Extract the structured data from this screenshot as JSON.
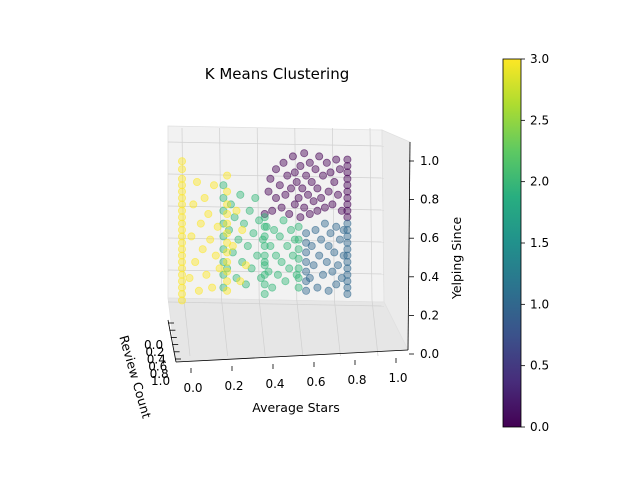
{
  "chart_data": {
    "type": "scatter",
    "title": "K Means Clustering",
    "xlabel": "Average Stars",
    "ylabel": "Review Count",
    "zlabel": "Yelping Since",
    "x_ticks": [
      "0.0",
      "0.2",
      "0.4",
      "0.6",
      "0.8",
      "1.0"
    ],
    "y_ticks": [
      "0.0",
      "0.2",
      "0.4",
      "0.6",
      "0.8",
      "1.0"
    ],
    "z_ticks": [
      "0.0",
      "0.2",
      "0.4",
      "0.6",
      "0.8",
      "1.0"
    ],
    "xlim": [
      0,
      1
    ],
    "ylim": [
      0,
      1
    ],
    "zlim": [
      0,
      1
    ],
    "grid": true,
    "colormap": "viridis",
    "colorbar": {
      "range": [
        0,
        3
      ],
      "ticks": [
        "0.0",
        "0.5",
        "1.0",
        "1.5",
        "2.0",
        "2.5",
        "3.0"
      ]
    },
    "cluster_colors": [
      "#440154",
      "#31688e",
      "#35b779",
      "#fde725"
    ],
    "clusters": [
      {
        "label": 0,
        "points": [
          [
            0.44,
            0.6
          ],
          [
            0.46,
            0.74
          ],
          [
            0.47,
            0.82
          ],
          [
            0.48,
            0.62
          ],
          [
            0.5,
            0.88
          ],
          [
            0.5,
            0.7
          ],
          [
            0.52,
            0.78
          ],
          [
            0.53,
            0.64
          ],
          [
            0.54,
            0.92
          ],
          [
            0.55,
            0.72
          ],
          [
            0.56,
            0.84
          ],
          [
            0.57,
            0.6
          ],
          [
            0.58,
            0.76
          ],
          [
            0.59,
            0.96
          ],
          [
            0.6,
            0.66
          ],
          [
            0.6,
            0.86
          ],
          [
            0.61,
            0.8
          ],
          [
            0.62,
            0.7
          ],
          [
            0.63,
            0.58
          ],
          [
            0.63,
            0.9
          ],
          [
            0.64,
            0.76
          ],
          [
            0.65,
            0.64
          ],
          [
            0.65,
            0.98
          ],
          [
            0.66,
            0.84
          ],
          [
            0.67,
            0.72
          ],
          [
            0.68,
            0.6
          ],
          [
            0.68,
            0.92
          ],
          [
            0.69,
            0.8
          ],
          [
            0.7,
            0.68
          ],
          [
            0.71,
            0.88
          ],
          [
            0.72,
            0.62
          ],
          [
            0.72,
            0.76
          ],
          [
            0.73,
            0.96
          ],
          [
            0.74,
            0.7
          ],
          [
            0.75,
            0.84
          ],
          [
            0.76,
            0.64
          ],
          [
            0.77,
            0.92
          ],
          [
            0.78,
            0.74
          ],
          [
            0.79,
            0.86
          ],
          [
            0.8,
            0.66
          ],
          [
            0.81,
            0.8
          ],
          [
            0.82,
            0.94
          ],
          [
            0.83,
            0.72
          ],
          [
            0.84,
            0.88
          ],
          [
            0.85,
            0.62
          ],
          [
            0.88,
            0.58
          ],
          [
            0.88,
            0.62
          ],
          [
            0.88,
            0.66
          ],
          [
            0.88,
            0.7
          ],
          [
            0.88,
            0.74
          ],
          [
            0.88,
            0.78
          ],
          [
            0.88,
            0.82
          ],
          [
            0.88,
            0.86
          ],
          [
            0.88,
            0.9
          ],
          [
            0.88,
            0.94
          ]
        ]
      },
      {
        "label": 1,
        "points": [
          [
            0.66,
            0.12
          ],
          [
            0.66,
            0.18
          ],
          [
            0.66,
            0.24
          ],
          [
            0.66,
            0.3
          ],
          [
            0.66,
            0.36
          ],
          [
            0.66,
            0.42
          ],
          [
            0.66,
            0.48
          ],
          [
            0.68,
            0.2
          ],
          [
            0.69,
            0.4
          ],
          [
            0.7,
            0.28
          ],
          [
            0.71,
            0.5
          ],
          [
            0.72,
            0.14
          ],
          [
            0.73,
            0.34
          ],
          [
            0.74,
            0.44
          ],
          [
            0.75,
            0.22
          ],
          [
            0.76,
            0.54
          ],
          [
            0.77,
            0.3
          ],
          [
            0.78,
            0.12
          ],
          [
            0.78,
            0.4
          ],
          [
            0.79,
            0.48
          ],
          [
            0.8,
            0.24
          ],
          [
            0.81,
            0.36
          ],
          [
            0.82,
            0.16
          ],
          [
            0.82,
            0.52
          ],
          [
            0.83,
            0.28
          ],
          [
            0.84,
            0.44
          ],
          [
            0.85,
            0.2
          ],
          [
            0.86,
            0.34
          ],
          [
            0.86,
            0.5
          ],
          [
            0.88,
            0.1
          ],
          [
            0.88,
            0.14
          ],
          [
            0.88,
            0.18
          ],
          [
            0.88,
            0.22
          ],
          [
            0.88,
            0.26
          ],
          [
            0.88,
            0.3
          ],
          [
            0.88,
            0.34
          ],
          [
            0.88,
            0.38
          ],
          [
            0.88,
            0.42
          ],
          [
            0.88,
            0.46
          ],
          [
            0.88,
            0.5
          ],
          [
            0.88,
            0.54
          ]
        ]
      },
      {
        "label": 2,
        "points": [
          [
            0.22,
            0.14
          ],
          [
            0.22,
            0.22
          ],
          [
            0.22,
            0.3
          ],
          [
            0.22,
            0.38
          ],
          [
            0.22,
            0.46
          ],
          [
            0.22,
            0.54
          ],
          [
            0.22,
            0.62
          ],
          [
            0.22,
            0.7
          ],
          [
            0.22,
            0.78
          ],
          [
            0.24,
            0.26
          ],
          [
            0.25,
            0.5
          ],
          [
            0.26,
            0.66
          ],
          [
            0.27,
            0.36
          ],
          [
            0.28,
            0.58
          ],
          [
            0.29,
            0.2
          ],
          [
            0.3,
            0.44
          ],
          [
            0.31,
            0.72
          ],
          [
            0.32,
            0.3
          ],
          [
            0.33,
            0.54
          ],
          [
            0.34,
            0.16
          ],
          [
            0.35,
            0.4
          ],
          [
            0.36,
            0.62
          ],
          [
            0.37,
            0.26
          ],
          [
            0.38,
            0.48
          ],
          [
            0.39,
            0.7
          ],
          [
            0.4,
            0.34
          ],
          [
            0.41,
            0.56
          ],
          [
            0.42,
            0.2
          ],
          [
            0.43,
            0.44
          ],
          [
            0.44,
            0.3
          ],
          [
            0.45,
            0.52
          ],
          [
            0.46,
            0.24
          ],
          [
            0.47,
            0.4
          ],
          [
            0.48,
            0.14
          ],
          [
            0.49,
            0.5
          ],
          [
            0.5,
            0.34
          ],
          [
            0.51,
            0.22
          ],
          [
            0.52,
            0.46
          ],
          [
            0.53,
            0.3
          ],
          [
            0.54,
            0.56
          ],
          [
            0.55,
            0.18
          ],
          [
            0.56,
            0.4
          ],
          [
            0.57,
            0.26
          ],
          [
            0.58,
            0.5
          ],
          [
            0.59,
            0.34
          ],
          [
            0.6,
            0.44
          ],
          [
            0.61,
            0.22
          ],
          [
            0.62,
            0.52
          ],
          [
            0.44,
            0.1
          ],
          [
            0.44,
            0.16
          ],
          [
            0.44,
            0.22
          ],
          [
            0.44,
            0.28
          ],
          [
            0.44,
            0.34
          ],
          [
            0.44,
            0.4
          ],
          [
            0.44,
            0.46
          ],
          [
            0.44,
            0.52
          ],
          [
            0.44,
            0.58
          ],
          [
            0.62,
            0.14
          ],
          [
            0.62,
            0.2
          ],
          [
            0.62,
            0.26
          ],
          [
            0.62,
            0.32
          ],
          [
            0.62,
            0.38
          ],
          [
            0.62,
            0.44
          ]
        ]
      },
      {
        "label": 3,
        "points": [
          [
            0.0,
            0.06
          ],
          [
            0.0,
            0.1
          ],
          [
            0.0,
            0.14
          ],
          [
            0.0,
            0.18
          ],
          [
            0.0,
            0.22
          ],
          [
            0.0,
            0.26
          ],
          [
            0.0,
            0.3
          ],
          [
            0.0,
            0.34
          ],
          [
            0.0,
            0.38
          ],
          [
            0.0,
            0.42
          ],
          [
            0.0,
            0.46
          ],
          [
            0.0,
            0.5
          ],
          [
            0.0,
            0.54
          ],
          [
            0.0,
            0.58
          ],
          [
            0.0,
            0.62
          ],
          [
            0.0,
            0.66
          ],
          [
            0.0,
            0.7
          ],
          [
            0.0,
            0.74
          ],
          [
            0.0,
            0.78
          ],
          [
            0.0,
            0.82
          ],
          [
            0.0,
            0.88
          ],
          [
            0.0,
            0.93
          ],
          [
            0.04,
            0.2
          ],
          [
            0.05,
            0.46
          ],
          [
            0.06,
            0.66
          ],
          [
            0.07,
            0.3
          ],
          [
            0.08,
            0.8
          ],
          [
            0.09,
            0.12
          ],
          [
            0.1,
            0.54
          ],
          [
            0.11,
            0.38
          ],
          [
            0.12,
            0.7
          ],
          [
            0.13,
            0.22
          ],
          [
            0.14,
            0.6
          ],
          [
            0.15,
            0.44
          ],
          [
            0.16,
            0.14
          ],
          [
            0.17,
            0.78
          ],
          [
            0.18,
            0.34
          ],
          [
            0.19,
            0.52
          ],
          [
            0.2,
            0.26
          ],
          [
            0.24,
            0.12
          ],
          [
            0.24,
            0.18
          ],
          [
            0.24,
            0.24
          ],
          [
            0.24,
            0.3
          ],
          [
            0.24,
            0.36
          ],
          [
            0.24,
            0.42
          ],
          [
            0.24,
            0.48
          ],
          [
            0.24,
            0.54
          ],
          [
            0.24,
            0.6
          ],
          [
            0.24,
            0.66
          ],
          [
            0.24,
            0.74
          ],
          [
            0.24,
            0.84
          ],
          [
            0.27,
            0.4
          ],
          [
            0.29,
            0.62
          ],
          [
            0.31,
            0.18
          ],
          [
            0.32,
            0.5
          ],
          [
            0.34,
            0.28
          ]
        ]
      }
    ]
  }
}
